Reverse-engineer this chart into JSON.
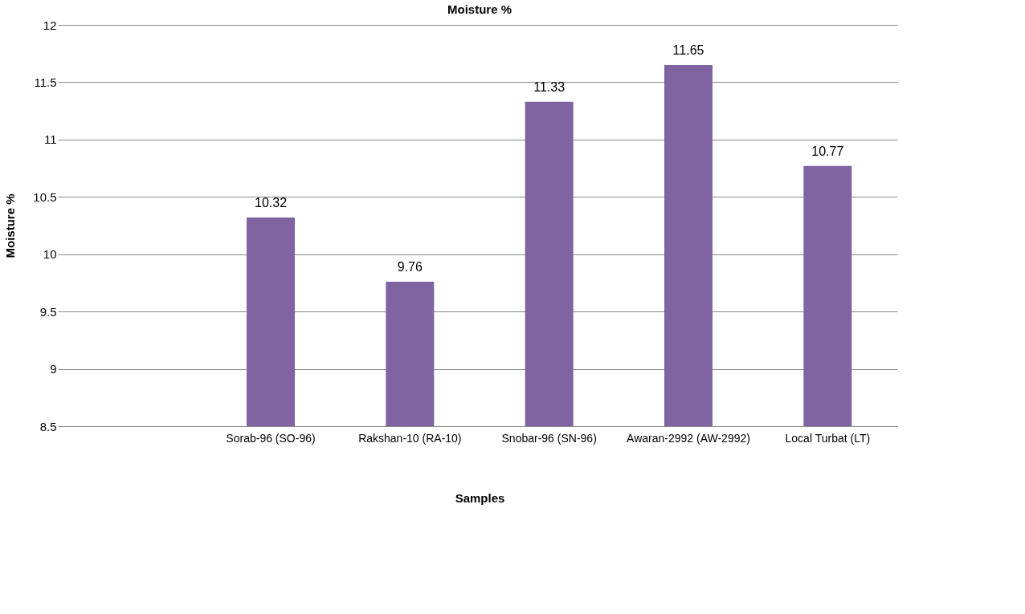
{
  "chart_data": {
    "type": "bar",
    "title": "Moisture %",
    "xlabel": "Samples",
    "ylabel": "Moisture %",
    "categories": [
      null,
      "Sorab-96 (SO-96)",
      "Rakshan-10 (RA-10)",
      "Snobar-96 (SN-96)",
      "Awaran-2992 (AW-2992)",
      "Local Turbat (LT)"
    ],
    "values": [
      null,
      10.32,
      9.76,
      11.33,
      11.65,
      10.77
    ],
    "color": "#8064a2",
    "ylim": [
      8.5,
      12
    ],
    "yticks": [
      8.5,
      9,
      9.5,
      10,
      10.5,
      11,
      11.5,
      12
    ],
    "grid": "y",
    "data_labels": true
  }
}
